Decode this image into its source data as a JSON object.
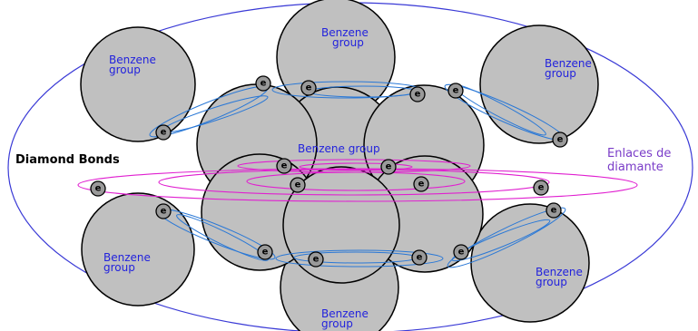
{
  "colors": {
    "outer_ellipse": "#3a3ad6",
    "group_fill": "#c0c0c0",
    "group_stroke": "#000000",
    "bond_color": "#e020d0",
    "orbit_color": "#2a78d6",
    "electron_fill": "#9a9a9a",
    "label_blue": "#2222dd",
    "label_purple": "#7a3cc8"
  },
  "labels": {
    "top_clip": "g",
    "benzene_group": [
      "Benzene",
      "group"
    ],
    "center_group": "Benzene group",
    "diamond_bonds_en": "Diamond Bonds",
    "diamond_bonds_es": [
      "Enlaces de",
      "diamante"
    ],
    "electron": "e"
  }
}
